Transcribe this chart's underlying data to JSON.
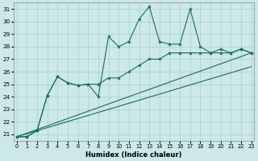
{
  "xlabel": "Humidex (Indice chaleur)",
  "bg_color": "#cce8e8",
  "line_color": "#1a6b60",
  "grid_color": "#a0c8c8",
  "x_values": [
    0,
    1,
    2,
    3,
    4,
    5,
    6,
    7,
    8,
    9,
    10,
    11,
    12,
    13,
    14,
    15,
    16,
    17,
    18,
    19,
    20,
    21,
    22,
    23
  ],
  "series1": [
    20.8,
    20.8,
    21.3,
    24.1,
    25.6,
    25.1,
    24.9,
    25.0,
    24.0,
    28.8,
    28.0,
    28.4,
    30.2,
    31.2,
    28.4,
    28.2,
    28.2,
    31.0,
    28.0,
    27.5,
    27.5,
    27.5,
    27.8,
    27.5
  ],
  "series2": [
    20.8,
    20.8,
    21.3,
    24.1,
    25.6,
    25.1,
    24.9,
    25.0,
    25.0,
    25.5,
    25.5,
    26.0,
    26.5,
    27.0,
    27.0,
    27.5,
    27.5,
    27.5,
    27.5,
    27.5,
    27.8,
    27.5,
    27.8,
    27.5
  ],
  "line3_x": [
    0,
    23
  ],
  "line3_y": [
    20.8,
    27.5
  ],
  "line4_x": [
    0,
    23
  ],
  "line4_y": [
    20.8,
    26.4
  ],
  "ylim": [
    20.5,
    31.5
  ],
  "yticks": [
    21,
    22,
    23,
    24,
    25,
    26,
    27,
    28,
    29,
    30,
    31
  ],
  "xlim": [
    -0.3,
    23.3
  ],
  "xticks": [
    0,
    1,
    2,
    3,
    4,
    5,
    6,
    7,
    8,
    9,
    10,
    11,
    12,
    13,
    14,
    15,
    16,
    17,
    18,
    19,
    20,
    21,
    22,
    23
  ]
}
